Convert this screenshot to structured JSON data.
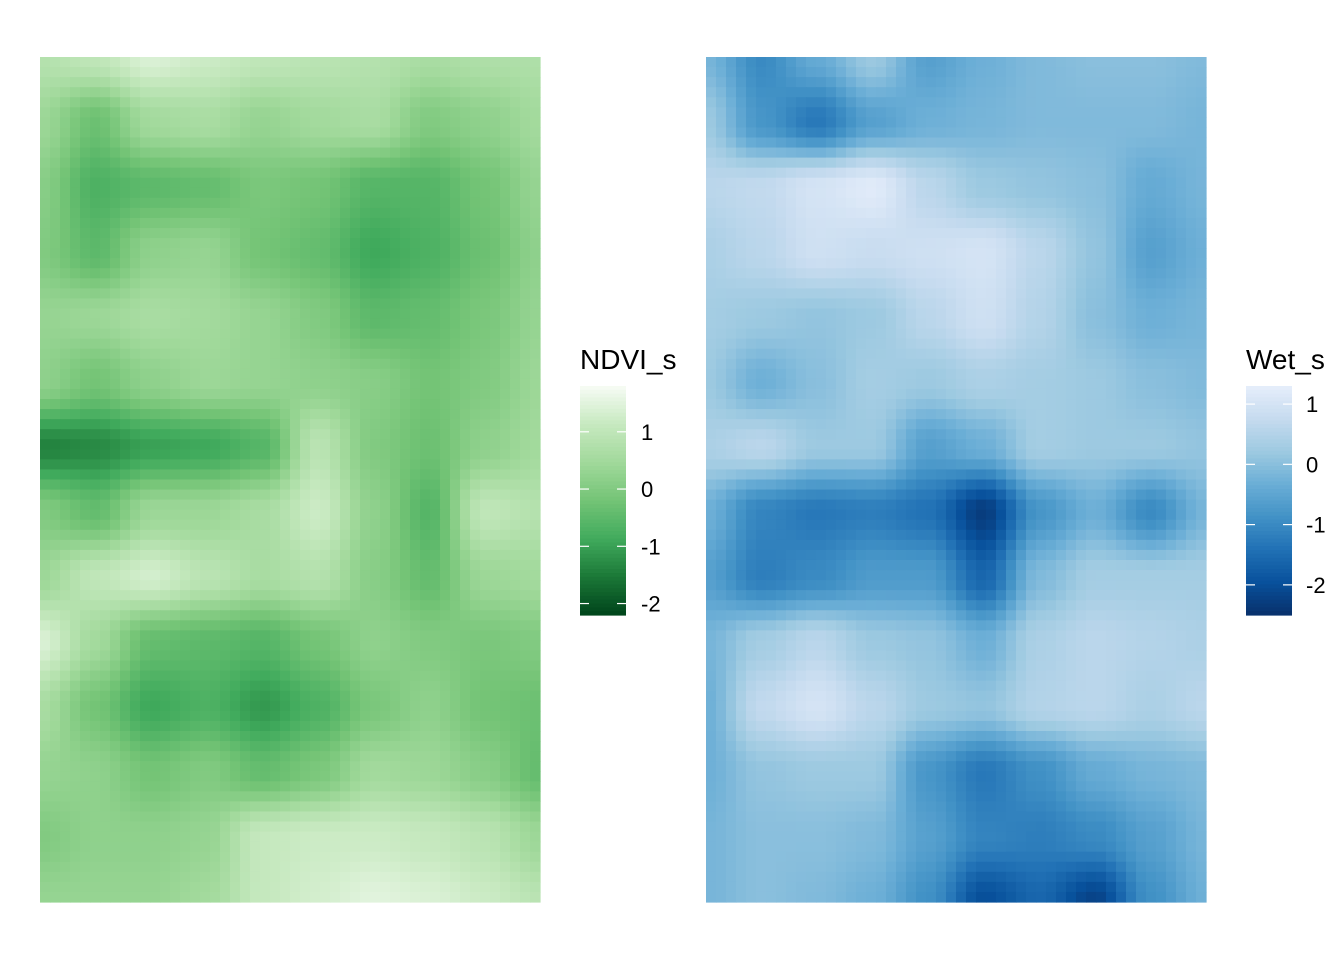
{
  "chart_data": [
    {
      "type": "heatmap",
      "name": "NDVI_s",
      "legend": {
        "title": "NDVI_s",
        "placement": "right",
        "range": [
          -2.2,
          1.8
        ],
        "ticks": [
          1,
          0,
          -1,
          -2
        ],
        "tick_labels": [
          "1",
          "0",
          "-1",
          "-2"
        ],
        "palette": [
          "#00441b",
          "#1b7837",
          "#41ab5d",
          "#74c476",
          "#a1d99b",
          "#c7e9c0",
          "#f7fcf5"
        ]
      },
      "grid_rows": [
        [
          0.8,
          1.0,
          1.4,
          1.2,
          1.0,
          0.9,
          0.8,
          0.6,
          0.7,
          0.7
        ],
        [
          0.4,
          -0.3,
          0.5,
          0.6,
          0.3,
          0.5,
          0.6,
          0.0,
          0.2,
          0.5
        ],
        [
          0.1,
          -0.7,
          -0.5,
          -0.4,
          -0.1,
          -0.2,
          -0.6,
          -0.6,
          -0.2,
          0.3
        ],
        [
          0.0,
          -0.5,
          0.2,
          0.3,
          -0.2,
          -0.4,
          -0.9,
          -0.7,
          -0.3,
          0.2
        ],
        [
          0.3,
          0.4,
          0.6,
          0.5,
          0.3,
          0.0,
          -0.5,
          -0.4,
          -0.1,
          0.3
        ],
        [
          0.2,
          -0.2,
          0.2,
          0.4,
          0.3,
          0.2,
          0.1,
          -0.2,
          0.0,
          0.4
        ],
        [
          -1.4,
          -1.3,
          -1.0,
          -0.9,
          -0.6,
          0.9,
          0.0,
          -0.3,
          0.2,
          0.5
        ],
        [
          0.0,
          -0.4,
          0.4,
          0.4,
          0.6,
          1.2,
          0.2,
          -0.6,
          1.0,
          0.8
        ],
        [
          0.4,
          1.0,
          1.3,
          0.9,
          0.6,
          0.8,
          0.1,
          -0.4,
          0.4,
          0.5
        ],
        [
          1.4,
          0.5,
          -0.4,
          -0.5,
          -0.6,
          -0.2,
          0.2,
          0.0,
          -0.1,
          0.0
        ],
        [
          0.6,
          -0.2,
          -0.9,
          -0.7,
          -1.1,
          -0.7,
          -0.1,
          0.2,
          -0.2,
          -0.3
        ],
        [
          0.3,
          0.2,
          -0.2,
          0.0,
          -0.4,
          -0.1,
          0.5,
          0.4,
          0.1,
          -0.4
        ],
        [
          0.0,
          0.2,
          0.2,
          0.3,
          1.1,
          1.2,
          1.2,
          1.1,
          0.9,
          0.4
        ],
        [
          0.3,
          0.3,
          0.3,
          0.5,
          1.1,
          1.3,
          1.5,
          1.4,
          1.2,
          0.9
        ]
      ]
    },
    {
      "type": "heatmap",
      "name": "Wet_s",
      "legend": {
        "title": "Wet_s",
        "placement": "right",
        "range": [
          -2.5,
          1.3
        ],
        "ticks": [
          1,
          0,
          -1,
          -2
        ],
        "tick_labels": [
          "1",
          "0",
          "-1",
          "-2"
        ],
        "palette": [
          "#08306b",
          "#08519c",
          "#2171b5",
          "#4292c6",
          "#6baed6",
          "#9ecae1",
          "#c6dbef",
          "#e6eefb"
        ]
      },
      "grid_rows": [
        [
          -0.2,
          -1.0,
          -0.4,
          0.2,
          -0.6,
          -0.3,
          -0.1,
          0.0,
          0.0,
          -0.1
        ],
        [
          0.2,
          -0.8,
          -1.3,
          -0.6,
          -0.3,
          -0.2,
          -0.1,
          -0.1,
          -0.1,
          -0.2
        ],
        [
          0.6,
          0.7,
          1.0,
          1.2,
          0.6,
          0.2,
          0.1,
          0.0,
          -0.4,
          -0.2
        ],
        [
          0.4,
          0.6,
          0.9,
          0.8,
          0.9,
          1.0,
          0.6,
          0.1,
          -0.6,
          -0.3
        ],
        [
          0.3,
          0.2,
          0.1,
          0.2,
          0.6,
          0.9,
          0.5,
          0.0,
          -0.3,
          -0.2
        ],
        [
          0.2,
          -0.3,
          0.0,
          0.3,
          0.2,
          0.4,
          0.3,
          0.2,
          0.0,
          -0.1
        ],
        [
          0.4,
          0.6,
          0.2,
          0.2,
          -0.6,
          -0.3,
          0.3,
          0.2,
          0.2,
          0.1
        ],
        [
          -0.3,
          -1.1,
          -1.3,
          -1.2,
          -1.4,
          -2.3,
          -0.8,
          -0.3,
          -1.0,
          -0.2
        ],
        [
          -0.6,
          -1.2,
          -1.0,
          -0.7,
          -0.7,
          -1.6,
          -0.1,
          0.3,
          0.3,
          0.3
        ],
        [
          -0.2,
          0.3,
          0.6,
          0.2,
          0.1,
          -0.3,
          0.4,
          0.6,
          0.5,
          0.4
        ],
        [
          -0.3,
          0.7,
          1.0,
          0.6,
          0.2,
          0.1,
          0.5,
          0.6,
          0.4,
          0.6
        ],
        [
          -0.3,
          0.1,
          0.2,
          0.2,
          -0.8,
          -1.3,
          -0.9,
          -0.4,
          -0.2,
          -0.1
        ],
        [
          -0.2,
          0.0,
          0.0,
          -0.1,
          -0.6,
          -1.1,
          -1.2,
          -1.0,
          -0.6,
          -0.2
        ],
        [
          -0.2,
          0.0,
          -0.1,
          -0.3,
          -0.9,
          -2.0,
          -1.6,
          -2.2,
          -0.9,
          -0.3
        ]
      ]
    }
  ]
}
